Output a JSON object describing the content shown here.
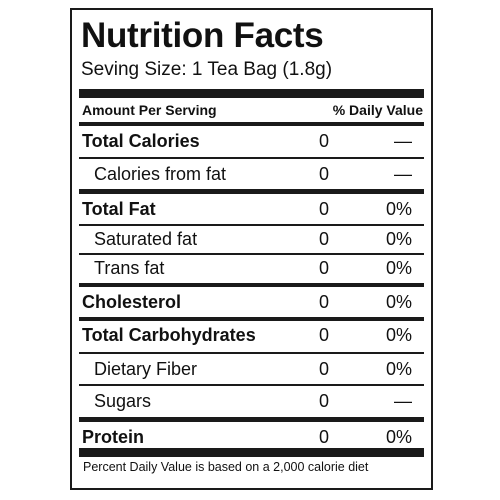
{
  "label": {
    "title": "Nutrition Facts",
    "serving_size": "Seving Size: 1 Tea Bag (1.8g)",
    "header_left": "Amount Per Serving",
    "header_right": "% Daily Value",
    "rows": [
      {
        "name": "Total Calories",
        "amount": "0",
        "dv": "—"
      },
      {
        "name": "Calories from fat",
        "amount": "0",
        "dv": "—"
      },
      {
        "name": "Total Fat",
        "amount": "0",
        "dv": "0%"
      },
      {
        "name": "Saturated fat",
        "amount": "0",
        "dv": "0%"
      },
      {
        "name": "Trans fat",
        "amount": "0",
        "dv": "0%"
      },
      {
        "name": "Cholesterol",
        "amount": "0",
        "dv": "0%"
      },
      {
        "name": "Total Carbohydrates",
        "amount": "0",
        "dv": "0%"
      },
      {
        "name": "Dietary Fiber",
        "amount": "0",
        "dv": "0%"
      },
      {
        "name": "Sugars",
        "amount": "0",
        "dv": "—"
      },
      {
        "name": "Protein",
        "amount": "0",
        "dv": "0%"
      }
    ],
    "footnote": "Percent Daily Value is based on a 2,000 calorie diet"
  },
  "colors": {
    "ink": "#1a1a1a",
    "background": "#ffffff"
  }
}
